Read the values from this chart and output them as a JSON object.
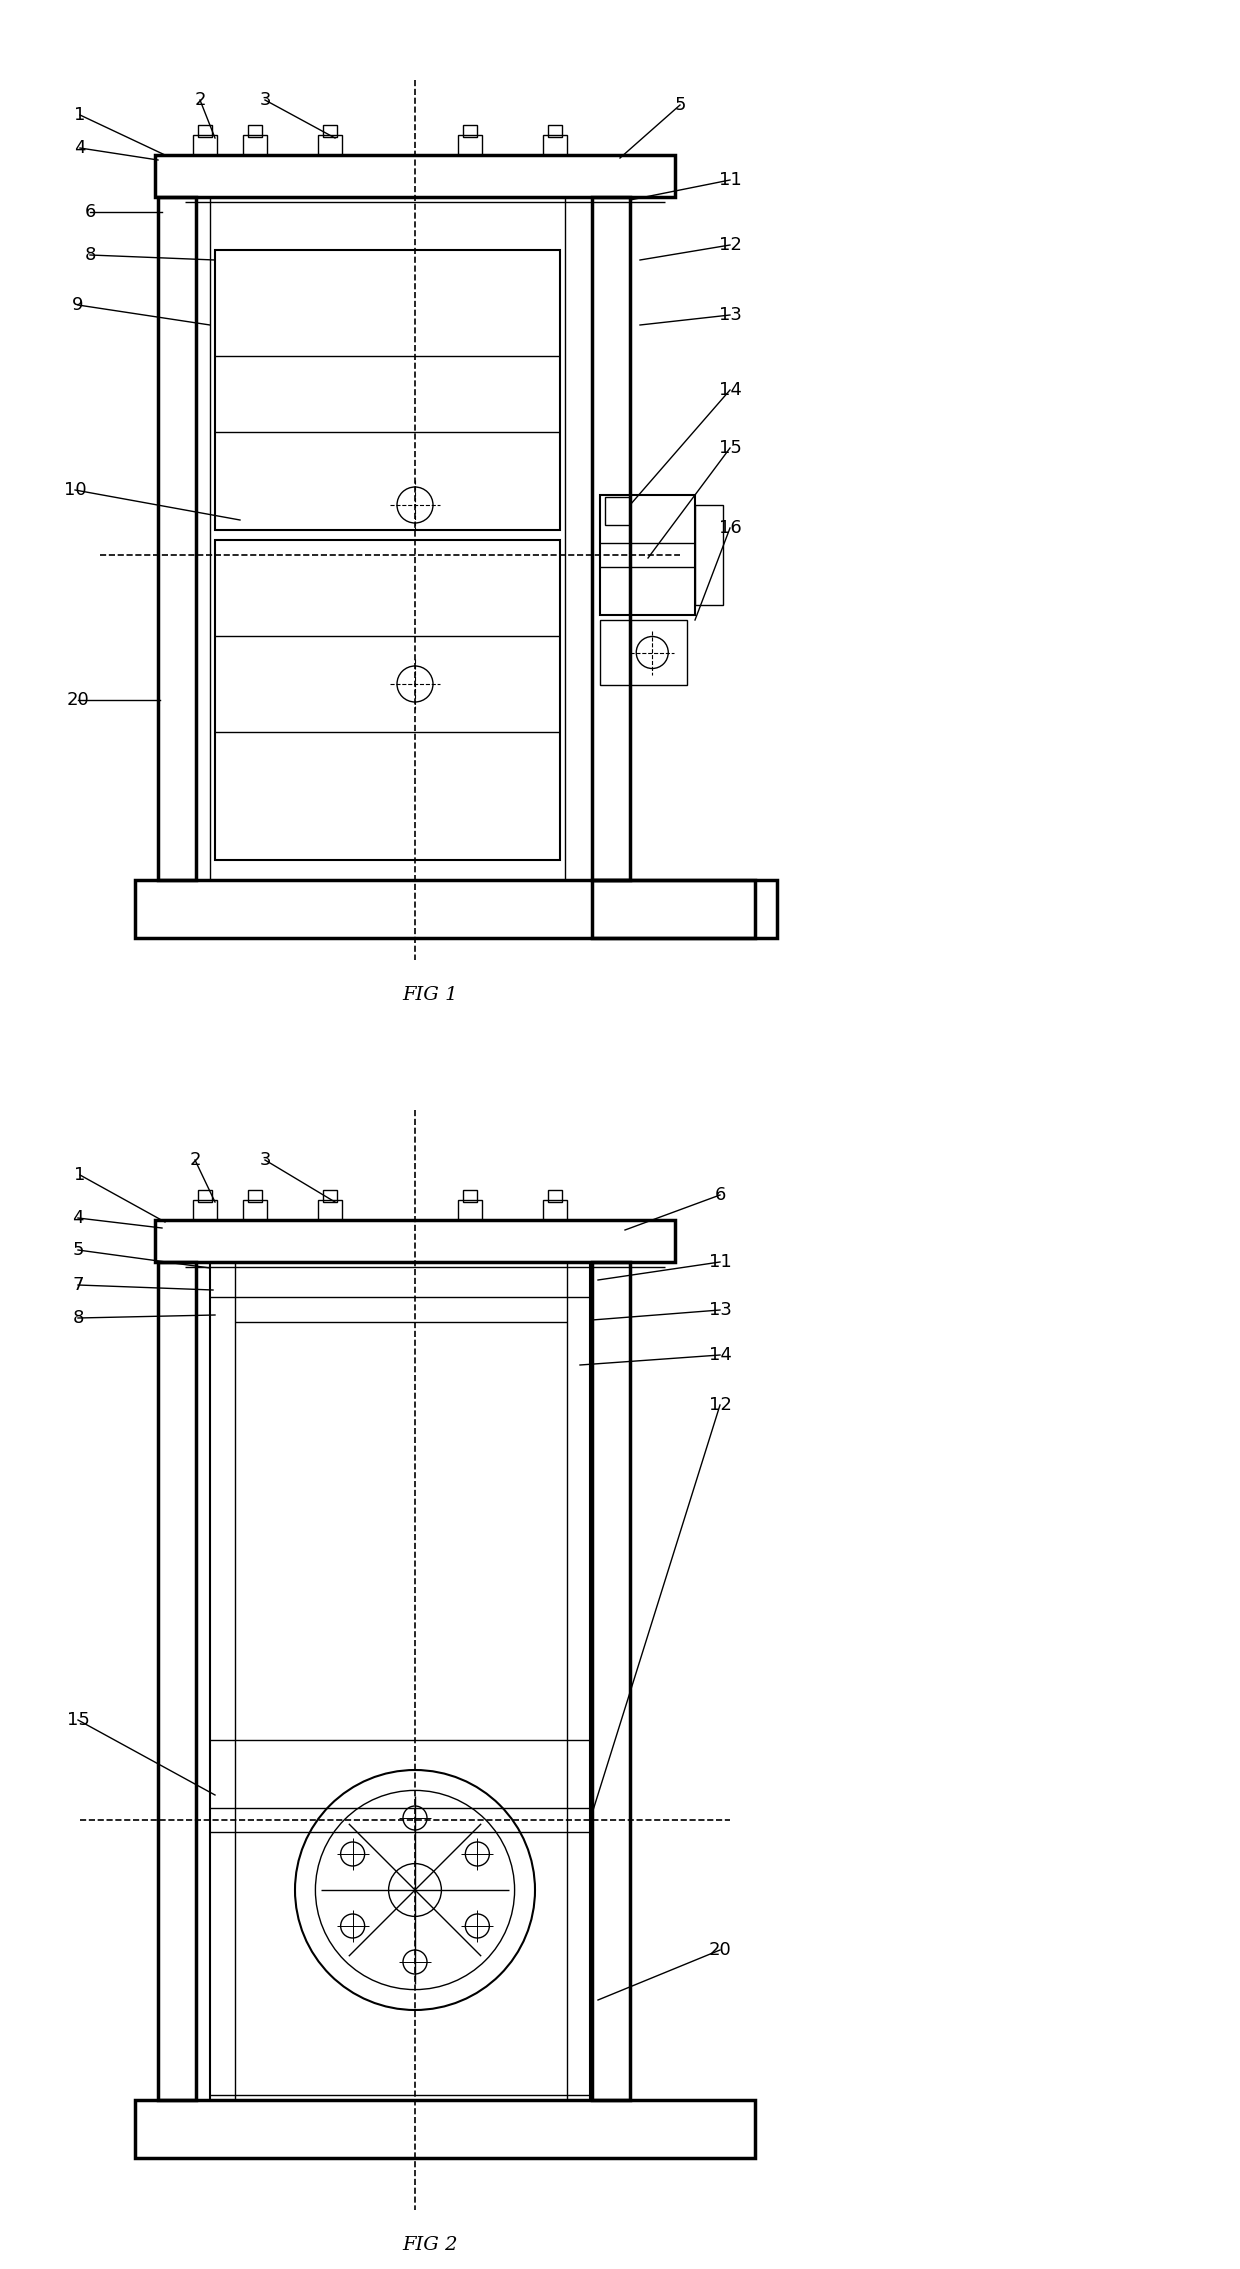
{
  "bg_color": "#ffffff",
  "line_color": "#000000",
  "fig1_caption": "FIG 1",
  "fig2_caption": "FIG 2",
  "lw_thick": 2.5,
  "lw_med": 1.5,
  "lw_thin": 1.0,
  "lw_dash": 1.2,
  "fontsize_label": 13,
  "fontsize_caption": 14
}
